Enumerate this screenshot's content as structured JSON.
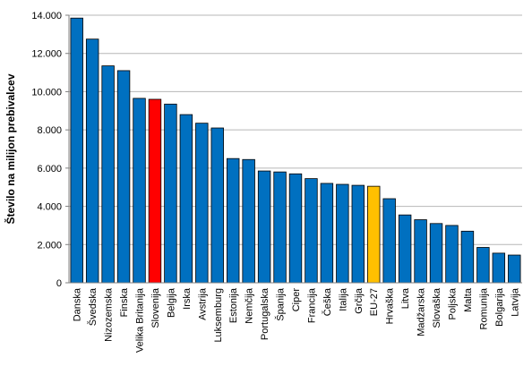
{
  "chart_data": {
    "type": "bar",
    "title": "",
    "xlabel": "",
    "ylabel": "Število na milijon prebivalcev",
    "ylim": [
      0,
      14000
    ],
    "yticks": [
      0,
      2000,
      4000,
      6000,
      8000,
      10000,
      12000,
      14000
    ],
    "ytick_labels": [
      "0",
      "2.000",
      "4.000",
      "6.000",
      "8.000",
      "10.000",
      "12.000",
      "14.000"
    ],
    "grid": true,
    "categories": [
      "Danska",
      "Švedska",
      "Nizozemska",
      "Finska",
      "Velika Britanija",
      "Slovenija",
      "Belgija",
      "Irska",
      "Avstrija",
      "Luksemburg",
      "Estonija",
      "Nemčija",
      "Portugalska",
      "Španija",
      "Ciper",
      "Francija",
      "Češka",
      "Italija",
      "Grčija",
      "EU-27",
      "Hrvaška",
      "Litva",
      "Madžarska",
      "Slovaška",
      "Poljska",
      "Malta",
      "Romunija",
      "Bolgarija",
      "Latvija"
    ],
    "values": [
      13850,
      12750,
      11350,
      11100,
      9650,
      9600,
      9350,
      8800,
      8350,
      8100,
      6500,
      6450,
      5850,
      5800,
      5700,
      5450,
      5200,
      5150,
      5100,
      5050,
      4400,
      3550,
      3300,
      3100,
      3000,
      2700,
      1850,
      1550,
      1450
    ],
    "colors": {
      "default": "#0070C0",
      "highlight": "#FF0000",
      "eu": "#FFC000",
      "grid": "#B7B7B7",
      "axis": "#808080"
    },
    "highlight": {
      "Slovenija": "highlight",
      "EU-27": "eu"
    }
  }
}
